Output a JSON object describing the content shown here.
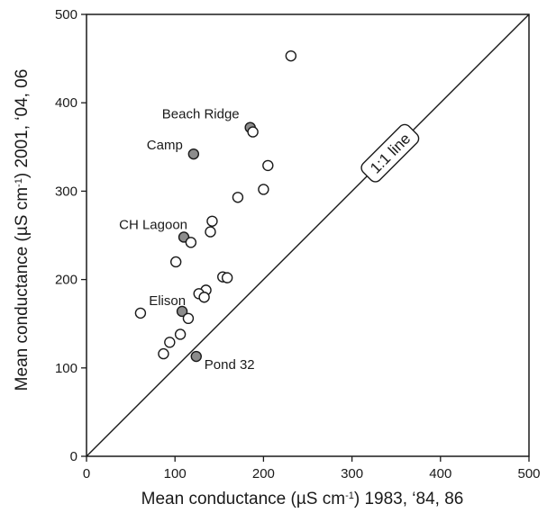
{
  "chart_data": {
    "type": "scatter",
    "xlabel_prefix": "Mean conductance (",
    "xlabel_unit": "µS cm",
    "xlabel_sup": "-1",
    "xlabel_suffix": ") 1983, ‘84, 86",
    "ylabel_prefix": "Mean conductance (",
    "ylabel_unit": "µS cm",
    "ylabel_sup": "-1",
    "ylabel_suffix": ") 2001, ‘04, 06",
    "xlim": [
      0,
      500
    ],
    "ylim": [
      0,
      500
    ],
    "xticks": [
      0,
      100,
      200,
      300,
      400,
      500
    ],
    "yticks": [
      0,
      100,
      200,
      300,
      400,
      500
    ],
    "xtick_labels": [
      "0",
      "100",
      "200",
      "300",
      "400",
      "500"
    ],
    "ytick_labels": [
      "0",
      "100",
      "200",
      "300",
      "400",
      "500"
    ],
    "grid": false,
    "reference_line": {
      "label": "1:1 line",
      "from": [
        0,
        0
      ],
      "to": [
        500,
        500
      ]
    },
    "points": [
      {
        "x": 231,
        "y": 453,
        "highlight": false
      },
      {
        "x": 185,
        "y": 372,
        "highlight": true,
        "label": "Beach Ridge"
      },
      {
        "x": 188,
        "y": 367,
        "highlight": false
      },
      {
        "x": 121,
        "y": 342,
        "highlight": true,
        "label": "Camp"
      },
      {
        "x": 205,
        "y": 329,
        "highlight": false
      },
      {
        "x": 200,
        "y": 302,
        "highlight": false
      },
      {
        "x": 171,
        "y": 293,
        "highlight": false
      },
      {
        "x": 142,
        "y": 266,
        "highlight": false
      },
      {
        "x": 140,
        "y": 254,
        "highlight": false
      },
      {
        "x": 110,
        "y": 248,
        "highlight": true,
        "label": "CH Lagoon"
      },
      {
        "x": 118,
        "y": 242,
        "highlight": false
      },
      {
        "x": 101,
        "y": 220,
        "highlight": false
      },
      {
        "x": 154,
        "y": 203,
        "highlight": false
      },
      {
        "x": 159,
        "y": 202,
        "highlight": false
      },
      {
        "x": 135,
        "y": 188,
        "highlight": false
      },
      {
        "x": 127,
        "y": 184,
        "highlight": false
      },
      {
        "x": 133,
        "y": 180,
        "highlight": false
      },
      {
        "x": 108,
        "y": 164,
        "highlight": true,
        "label": "Elison"
      },
      {
        "x": 61,
        "y": 162,
        "highlight": false
      },
      {
        "x": 115,
        "y": 156,
        "highlight": false
      },
      {
        "x": 106,
        "y": 138,
        "highlight": false
      },
      {
        "x": 94,
        "y": 129,
        "highlight": false
      },
      {
        "x": 87,
        "y": 116,
        "highlight": false
      },
      {
        "x": 124,
        "y": 113,
        "highlight": true,
        "label": "Pond 32"
      }
    ],
    "colors": {
      "open_fill": "#ffffff",
      "highlight_fill": "#8c8c8c",
      "stroke": "#1a1a1a"
    }
  }
}
